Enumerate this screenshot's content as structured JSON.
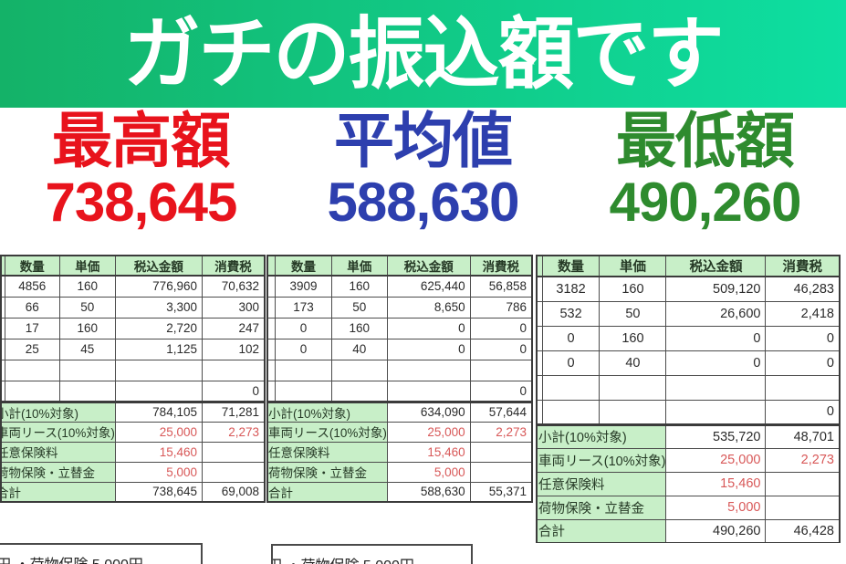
{
  "banner": {
    "title": "ガチの振込額です"
  },
  "colors": {
    "banner_left": "#14b268",
    "banner_right": "#0edfa2",
    "table_header_fill": "#c8efc8",
    "table_red_value": "#d85858",
    "table_border": "#3b3b3b"
  },
  "stats": [
    {
      "label": "最高額",
      "value": "738,645",
      "color": "#e8131c"
    },
    {
      "label": "平均値",
      "value": "588,630",
      "color": "#2d3fae"
    },
    {
      "label": "最低額",
      "value": "490,260",
      "color": "#2e8b2e"
    }
  ],
  "table_headers": [
    "数量",
    "単価",
    "税込金額",
    "消費税"
  ],
  "tables": [
    {
      "name": "highest",
      "rows": [
        [
          "4856",
          "160",
          "776,960",
          "70,632"
        ],
        [
          "66",
          "50",
          "3,300",
          "300"
        ],
        [
          "17",
          "160",
          "2,720",
          "247"
        ],
        [
          "25",
          "45",
          "1,125",
          "102"
        ],
        [
          "",
          "",
          "",
          ""
        ],
        [
          "",
          "",
          "",
          "0"
        ]
      ],
      "summary": [
        {
          "label": "小計(10%対象)",
          "amount": "784,105",
          "tax": "71,281",
          "red": false
        },
        {
          "label": "車両リース(10%対象)",
          "amount": "25,000",
          "tax": "2,273",
          "red": true
        },
        {
          "label": "任意保険料",
          "amount": "15,460",
          "tax": "",
          "red": true
        },
        {
          "label": "荷物保険・立替金",
          "amount": "5,000",
          "tax": "",
          "red": true
        },
        {
          "label": "合計",
          "amount": "738,645",
          "tax": "69,008",
          "red": false
        }
      ]
    },
    {
      "name": "average",
      "rows": [
        [
          "3909",
          "160",
          "625,440",
          "56,858"
        ],
        [
          "173",
          "50",
          "8,650",
          "786"
        ],
        [
          "0",
          "160",
          "0",
          "0"
        ],
        [
          "0",
          "40",
          "0",
          "0"
        ],
        [
          "",
          "",
          "",
          ""
        ],
        [
          "",
          "",
          "",
          "0"
        ]
      ],
      "summary": [
        {
          "label": "小計(10%対象)",
          "amount": "634,090",
          "tax": "57,644",
          "red": false
        },
        {
          "label": "車両リース(10%対象)",
          "amount": "25,000",
          "tax": "2,273",
          "red": true
        },
        {
          "label": "任意保険料",
          "amount": "15,460",
          "tax": "",
          "red": true
        },
        {
          "label": "荷物保険・立替金",
          "amount": "5,000",
          "tax": "",
          "red": true
        },
        {
          "label": "合計",
          "amount": "588,630",
          "tax": "55,371",
          "red": false
        }
      ]
    },
    {
      "name": "lowest",
      "rows": [
        [
          "3182",
          "160",
          "509,120",
          "46,283"
        ],
        [
          "532",
          "50",
          "26,600",
          "2,418"
        ],
        [
          "0",
          "160",
          "0",
          "0"
        ],
        [
          "0",
          "40",
          "0",
          "0"
        ],
        [
          "",
          "",
          "",
          ""
        ],
        [
          "",
          "",
          "",
          "0"
        ]
      ],
      "summary": [
        {
          "label": "小計(10%対象)",
          "amount": "535,720",
          "tax": "48,701",
          "red": false
        },
        {
          "label": "車両リース(10%対象)",
          "amount": "25,000",
          "tax": "2,273",
          "red": true
        },
        {
          "label": "任意保険料",
          "amount": "15,460",
          "tax": "",
          "red": true
        },
        {
          "label": "荷物保険・立替金",
          "amount": "5,000",
          "tax": "",
          "red": true
        },
        {
          "label": "合計",
          "amount": "490,260",
          "tax": "46,428",
          "red": false
        }
      ]
    }
  ],
  "notes": [
    {
      "text": "円 ・荷物保険 5,000円"
    },
    {
      "text": "円 ・荷物保険 5,000円"
    }
  ]
}
